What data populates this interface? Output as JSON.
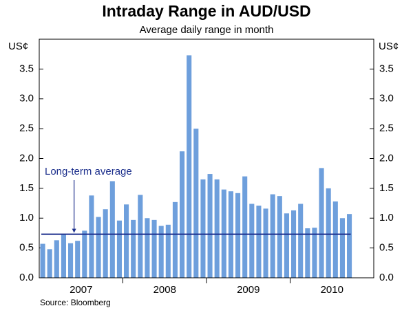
{
  "chart_data": {
    "type": "bar",
    "title": "Intraday Range in AUD/USD",
    "subtitle": "Average daily range in month",
    "y_unit": "US¢",
    "source": "Source: Bloomberg",
    "years": [
      "2007",
      "2008",
      "2009",
      "2010"
    ],
    "categories": [
      null,
      null,
      null,
      null,
      null,
      null,
      null,
      null,
      null,
      null,
      null,
      null,
      null,
      null,
      null,
      null,
      null,
      null,
      null,
      null,
      null,
      null,
      null,
      null,
      null,
      null,
      null,
      null,
      null,
      null,
      null,
      null,
      null,
      null,
      null,
      null,
      null,
      null,
      null,
      null,
      null,
      null,
      null,
      null,
      null
    ],
    "values": [
      0.57,
      0.48,
      0.63,
      0.72,
      0.58,
      0.62,
      0.79,
      1.38,
      1.02,
      1.15,
      1.62,
      0.96,
      1.23,
      0.97,
      1.39,
      1.0,
      0.97,
      0.87,
      0.89,
      1.27,
      2.12,
      3.73,
      2.5,
      1.65,
      1.74,
      1.65,
      1.48,
      1.45,
      1.42,
      1.7,
      1.24,
      1.21,
      1.16,
      1.4,
      1.37,
      1.08,
      1.13,
      1.24,
      0.83,
      0.84,
      1.84,
      1.5,
      1.28,
      1.0,
      1.07
    ],
    "color": "#6e9fdc",
    "average": {
      "label": "Long-term average",
      "value": 0.73,
      "color": "#1c2f8c"
    },
    "ylim": [
      0,
      4
    ],
    "yticks": [
      {
        "value": 0,
        "label": "0.0"
      },
      0.5,
      {
        "value": 1,
        "label": "1.0"
      },
      1.5,
      {
        "value": 2,
        "label": "2.0"
      },
      2.5,
      {
        "value": 3,
        "label": "3.0"
      },
      3.5
    ]
  }
}
